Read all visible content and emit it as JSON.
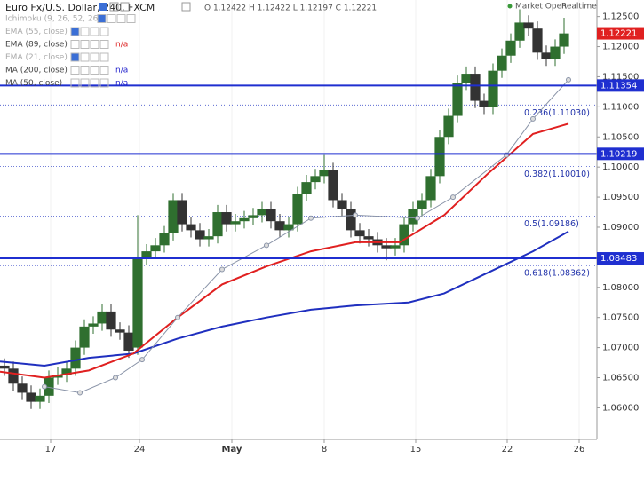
{
  "chart_data": {
    "type": "candlestick",
    "title": "Euro Fx/U.S. Dollar, 240, FXCM",
    "ohlc_text": "O 1.12422 H 1.12422 L 1.12197 C 1.12221",
    "status": [
      "Market Open",
      "Realtime"
    ],
    "indicators": [
      {
        "name": "Ichimoku (9, 26, 52, 26)"
      },
      {
        "name": "EMA (55, close)"
      },
      {
        "name": "EMA (89, close)",
        "value_text": "n/a"
      },
      {
        "name": "EMA (21, close)"
      },
      {
        "name": "MA (200, close)",
        "value_text": "n/a"
      },
      {
        "name": "MA (50, close)",
        "value_text": "n/a"
      }
    ],
    "xlim": [
      0,
      33.6
    ],
    "xticks": [
      {
        "value": 2.85,
        "label": "17"
      },
      {
        "value": 7.85,
        "label": "24"
      },
      {
        "value": 13.05,
        "label": "May"
      },
      {
        "value": 18.25,
        "label": "8"
      },
      {
        "value": 23.4,
        "label": "15"
      },
      {
        "value": 28.55,
        "label": "22"
      },
      {
        "value": 32.6,
        "label": "26"
      }
    ],
    "ylim": [
      1.05475,
      1.12775
    ],
    "yticks": [
      {
        "value": 1.06,
        "label": "1.06000"
      },
      {
        "value": 1.065,
        "label": "1.06500"
      },
      {
        "value": 1.07,
        "label": "1.07000"
      },
      {
        "value": 1.075,
        "label": "1.07500"
      },
      {
        "value": 1.08,
        "label": "1.08000"
      },
      {
        "value": 1.085,
        "label": "1.08500"
      },
      {
        "value": 1.09,
        "label": "1.09000"
      },
      {
        "value": 1.095,
        "label": "1.09500"
      },
      {
        "value": 1.1,
        "label": "1.10000"
      },
      {
        "value": 1.105,
        "label": "1.10500"
      },
      {
        "value": 1.11,
        "label": "1.11000"
      },
      {
        "value": 1.115,
        "label": "1.11500"
      },
      {
        "value": 1.12,
        "label": "1.12000"
      },
      {
        "value": 1.125,
        "label": "1.12500"
      }
    ],
    "candles": {
      "up_color": "#2f6f2f",
      "down_color": "#333333",
      "x": [
        0.25,
        0.75,
        1.25,
        1.75,
        2.25,
        2.75,
        3.25,
        3.75,
        4.25,
        4.75,
        5.25,
        5.75,
        6.25,
        6.75,
        7.25,
        7.75,
        8.25,
        8.75,
        9.25,
        9.75,
        10.25,
        10.75,
        11.25,
        11.75,
        12.25,
        12.75,
        13.25,
        13.75,
        14.25,
        14.75,
        15.25,
        15.75,
        16.25,
        16.75,
        17.25,
        17.75,
        18.25,
        18.75,
        19.25,
        19.75,
        20.25,
        20.75,
        21.25,
        21.75,
        22.25,
        22.75,
        23.25,
        23.75,
        24.25,
        24.75,
        25.25,
        25.75,
        26.25,
        26.75,
        27.25,
        27.75,
        28.25,
        28.75,
        29.25,
        29.75,
        30.25,
        30.75,
        31.25,
        31.75
      ],
      "open": [
        1.067,
        1.0665,
        1.064,
        1.0625,
        1.061,
        1.062,
        1.065,
        1.0655,
        1.0665,
        1.07,
        1.0735,
        1.074,
        1.076,
        1.073,
        1.0725,
        1.07,
        1.085,
        1.086,
        1.087,
        1.089,
        1.0945,
        1.0905,
        1.0895,
        1.088,
        1.0885,
        1.0925,
        1.0905,
        1.091,
        1.0915,
        1.092,
        1.093,
        1.091,
        1.0895,
        1.0905,
        1.0955,
        1.0975,
        1.0985,
        1.0995,
        1.0945,
        1.093,
        1.0895,
        1.0885,
        1.088,
        1.087,
        1.0865,
        1.087,
        1.0905,
        1.093,
        1.0945,
        1.0985,
        1.105,
        1.1085,
        1.114,
        1.1155,
        1.111,
        1.11,
        1.116,
        1.1185,
        1.121,
        1.124,
        1.123,
        1.119,
        1.118,
        1.12
      ],
      "high": [
        1.0682,
        1.0677,
        1.0652,
        1.0637,
        1.0632,
        1.0662,
        1.0667,
        1.0677,
        1.0712,
        1.0747,
        1.0752,
        1.0772,
        1.0772,
        1.0742,
        1.0737,
        1.092,
        1.0872,
        1.0882,
        1.0902,
        1.0957,
        1.0957,
        1.0917,
        1.0907,
        1.0897,
        1.0937,
        1.0937,
        1.0922,
        1.0927,
        1.0932,
        1.0942,
        1.0942,
        1.0922,
        1.0917,
        1.0967,
        1.0987,
        1.0997,
        1.102,
        1.1007,
        1.0957,
        1.0942,
        1.0907,
        1.0897,
        1.0892,
        1.0882,
        1.0882,
        1.0917,
        1.0942,
        1.0957,
        1.0997,
        1.1062,
        1.1097,
        1.1152,
        1.1167,
        1.1167,
        1.1122,
        1.1172,
        1.1197,
        1.1222,
        1.1262,
        1.1252,
        1.1242,
        1.1202,
        1.1212,
        1.1248
      ],
      "low": [
        1.0653,
        1.0628,
        1.0613,
        1.0598,
        1.0598,
        1.0608,
        1.0638,
        1.0643,
        1.0653,
        1.0688,
        1.0723,
        1.0728,
        1.0718,
        1.0713,
        1.0683,
        1.0688,
        1.0838,
        1.0848,
        1.0858,
        1.0878,
        1.0893,
        1.0883,
        1.0868,
        1.0868,
        1.0873,
        1.0893,
        1.0893,
        1.0898,
        1.0903,
        1.0908,
        1.0898,
        1.0883,
        1.0883,
        1.0893,
        1.0943,
        1.0963,
        1.0973,
        1.0933,
        1.0918,
        1.0883,
        1.0873,
        1.0868,
        1.0858,
        1.0845,
        1.0853,
        1.0858,
        1.0893,
        1.0918,
        1.0933,
        1.0973,
        1.1038,
        1.1073,
        1.1128,
        1.1098,
        1.1088,
        1.1088,
        1.1148,
        1.1173,
        1.1198,
        1.1218,
        1.1178,
        1.1168,
        1.1168,
        1.1188
      ],
      "close": [
        1.0665,
        1.064,
        1.0625,
        1.061,
        1.062,
        1.065,
        1.0655,
        1.0665,
        1.07,
        1.0735,
        1.074,
        1.076,
        1.073,
        1.0725,
        1.0695,
        1.085,
        1.086,
        1.087,
        1.089,
        1.0945,
        1.0905,
        1.0895,
        1.088,
        1.0885,
        1.0925,
        1.0905,
        1.091,
        1.0915,
        1.092,
        1.093,
        1.091,
        1.0895,
        1.0905,
        1.0955,
        1.0975,
        1.0985,
        1.0995,
        1.0945,
        1.093,
        1.0895,
        1.0885,
        1.088,
        1.087,
        1.0865,
        1.087,
        1.0905,
        1.093,
        1.0945,
        1.0985,
        1.105,
        1.1085,
        1.114,
        1.1155,
        1.111,
        1.11,
        1.116,
        1.1185,
        1.121,
        1.124,
        1.123,
        1.119,
        1.118,
        1.12,
        1.1222
      ]
    },
    "series": [
      {
        "name": "MA (200, close)",
        "color": "#1f2fbf",
        "x": [
          0,
          2.5,
          5,
          7.5,
          10,
          12.5,
          15,
          17.5,
          20,
          23,
          25,
          27.5,
          30,
          32
        ],
        "values": [
          1.0677,
          1.067,
          1.0683,
          1.069,
          1.0715,
          1.0735,
          1.075,
          1.0763,
          1.077,
          1.0775,
          1.079,
          1.0825,
          1.086,
          1.0893
        ]
      },
      {
        "name": "MA (50, close)",
        "color": "#e02020",
        "x": [
          0,
          2.5,
          5,
          7.5,
          10,
          12.5,
          15,
          17.5,
          20,
          22.5,
          25,
          27.5,
          30,
          32
        ],
        "values": [
          1.066,
          1.065,
          1.0662,
          1.069,
          1.075,
          1.0805,
          1.0835,
          1.086,
          1.0875,
          1.0875,
          1.092,
          1.099,
          1.1055,
          1.1072
        ]
      },
      {
        "name": "Ichimoku (9, 26, 52, 26)",
        "color": "#8a94a8",
        "markers": true,
        "x": [
          2.5,
          4.5,
          6.5,
          8,
          10,
          12.5,
          15,
          17.5,
          20,
          23.5,
          25.5,
          28.5,
          30,
          32
        ],
        "values": [
          1.0635,
          1.0625,
          1.065,
          1.068,
          1.075,
          1.083,
          1.087,
          1.0915,
          1.092,
          1.0915,
          1.095,
          1.102,
          1.108,
          1.1145
        ]
      }
    ],
    "levels": [
      {
        "color": "#1f2fd0",
        "values": [
          1.11354,
          1.10219,
          1.08483
        ]
      }
    ],
    "fib": [
      {
        "label": "0.236(1.11030)",
        "price": 1.1103
      },
      {
        "label": "0.382(1.10010)",
        "price": 1.1001
      },
      {
        "label": "0.5(1.09186)",
        "price": 1.09186
      },
      {
        "label": "0.618(1.08362)",
        "price": 1.08362
      }
    ],
    "last_price": {
      "value": 1.12221,
      "color": "#e02020"
    }
  }
}
